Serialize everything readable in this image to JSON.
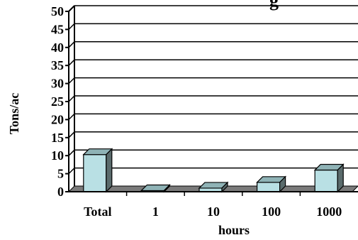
{
  "chart_data": {
    "type": "bar",
    "title_fragment": "g",
    "ylabel": "Tons/ac",
    "xlabel": "hours",
    "categories": [
      "Total",
      "1",
      "10",
      "100",
      "1000"
    ],
    "values": [
      10.3,
      0.3,
      1.0,
      2.6,
      6.0
    ],
    "ylim": [
      0,
      50
    ],
    "yticks": [
      "0",
      "5",
      "10",
      "15",
      "20",
      "25",
      "30",
      "35",
      "40",
      "45",
      "50"
    ],
    "grid": true,
    "colors": {
      "bar_front": "#b9e0e4",
      "bar_top": "#8fb3b6",
      "bar_side": "#5a6b6c",
      "floor": "#7a7a7a",
      "wall": "#ffffff",
      "axis": "#000000"
    }
  }
}
